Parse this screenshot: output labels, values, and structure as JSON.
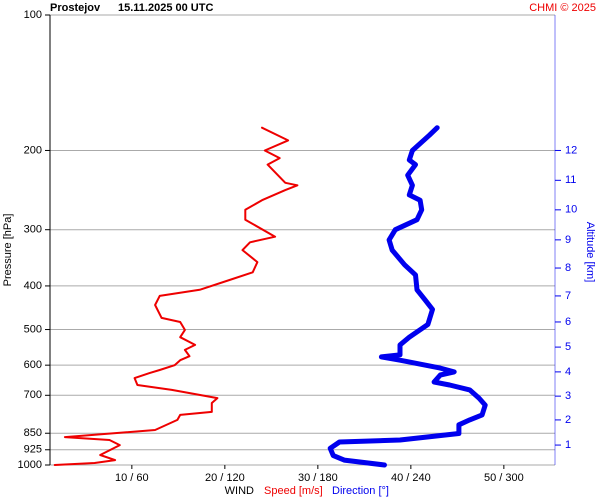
{
  "chart_data": {
    "type": "profile",
    "title": "Prostejov",
    "subtitle": "15.11.2025 00 UTC",
    "credit": "CHMI © 2025",
    "ylabel": "Pressure [hPa]",
    "y2label": "Altitude [km]",
    "xlabel": "WIND",
    "log_y": true,
    "grid": true,
    "ylim": [
      100,
      1000
    ],
    "yticks": [
      100,
      200,
      300,
      400,
      500,
      600,
      700,
      850,
      925,
      1000
    ],
    "xlim": [
      1.2,
      55.5
    ],
    "x2lim": [
      7.2,
      333
    ],
    "xticks": [
      {
        "value": 10,
        "label": "10 / 60"
      },
      {
        "value": 20,
        "label": "20 / 120"
      },
      {
        "value": 30,
        "label": "30 / 180"
      },
      {
        "value": 40,
        "label": "40 / 240"
      },
      {
        "value": 50,
        "label": "50 / 300"
      }
    ],
    "altitude_ticks": [
      {
        "value": 1,
        "pressure": 903
      },
      {
        "value": 2,
        "pressure": 794
      },
      {
        "value": 3,
        "pressure": 703
      },
      {
        "value": 4,
        "pressure": 621
      },
      {
        "value": 5,
        "pressure": 547
      },
      {
        "value": 6,
        "pressure": 481
      },
      {
        "value": 7,
        "pressure": 421
      },
      {
        "value": 8,
        "pressure": 365
      },
      {
        "value": 9,
        "pressure": 316
      },
      {
        "value": 10,
        "pressure": 271
      },
      {
        "value": 11,
        "pressure": 233
      },
      {
        "value": 12,
        "pressure": 200
      }
    ],
    "series": [
      {
        "name": "Speed [m/s]",
        "color": "#ee0000",
        "axis": "x",
        "pressure": [
          178,
          190,
          200,
          208,
          215,
          227,
          236,
          239,
          245,
          258,
          271,
          285,
          311,
          320,
          333,
          354,
          373,
          388,
          408,
          421,
          441,
          471,
          481,
          501,
          520,
          541,
          555,
          573,
          585,
          600,
          615,
          625,
          641,
          664,
          681,
          710,
          728,
          762,
          774,
          794,
          836,
          867,
          880,
          903,
          950,
          975,
          990,
          1000
        ],
        "values": [
          24.0,
          26.8,
          24.3,
          25.9,
          24.6,
          25.7,
          26.5,
          27.8,
          26.5,
          24.0,
          22.2,
          22.2,
          25.4,
          22.7,
          21.9,
          23.5,
          23.0,
          20.5,
          17.3,
          13.0,
          12.5,
          13.2,
          15.2,
          15.7,
          15.2,
          16.8,
          15.7,
          16.2,
          15.2,
          14.6,
          13.0,
          11.9,
          10.3,
          10.6,
          14.3,
          19.2,
          18.6,
          18.6,
          15.2,
          14.9,
          12.5,
          2.8,
          7.6,
          8.7,
          6.6,
          8.2,
          6.0,
          1.7
        ]
      },
      {
        "name": "Direction [°]",
        "color": "#0000ee",
        "axis": "x2",
        "pressure": [
          178,
          185,
          200,
          210,
          215,
          227,
          239,
          251,
          258,
          271,
          285,
          300,
          316,
          333,
          359,
          378,
          408,
          429,
          451,
          487,
          520,
          541,
          569,
          575,
          585,
          609,
          621,
          631,
          654,
          664,
          681,
          710,
          736,
          774,
          794,
          814,
          851,
          880,
          889,
          918,
          953,
          975,
          1000
        ],
        "values": [
          257,
          252,
          241,
          239,
          243,
          238,
          241,
          239,
          246,
          247,
          244,
          230,
          226,
          228,
          236,
          243,
          244,
          249,
          254,
          251,
          239,
          233,
          233,
          221,
          233,
          259,
          268,
          259,
          255,
          265,
          278,
          284,
          288,
          286,
          278,
          271,
          271,
          233,
          194,
          188,
          190,
          197,
          223
        ]
      }
    ]
  }
}
